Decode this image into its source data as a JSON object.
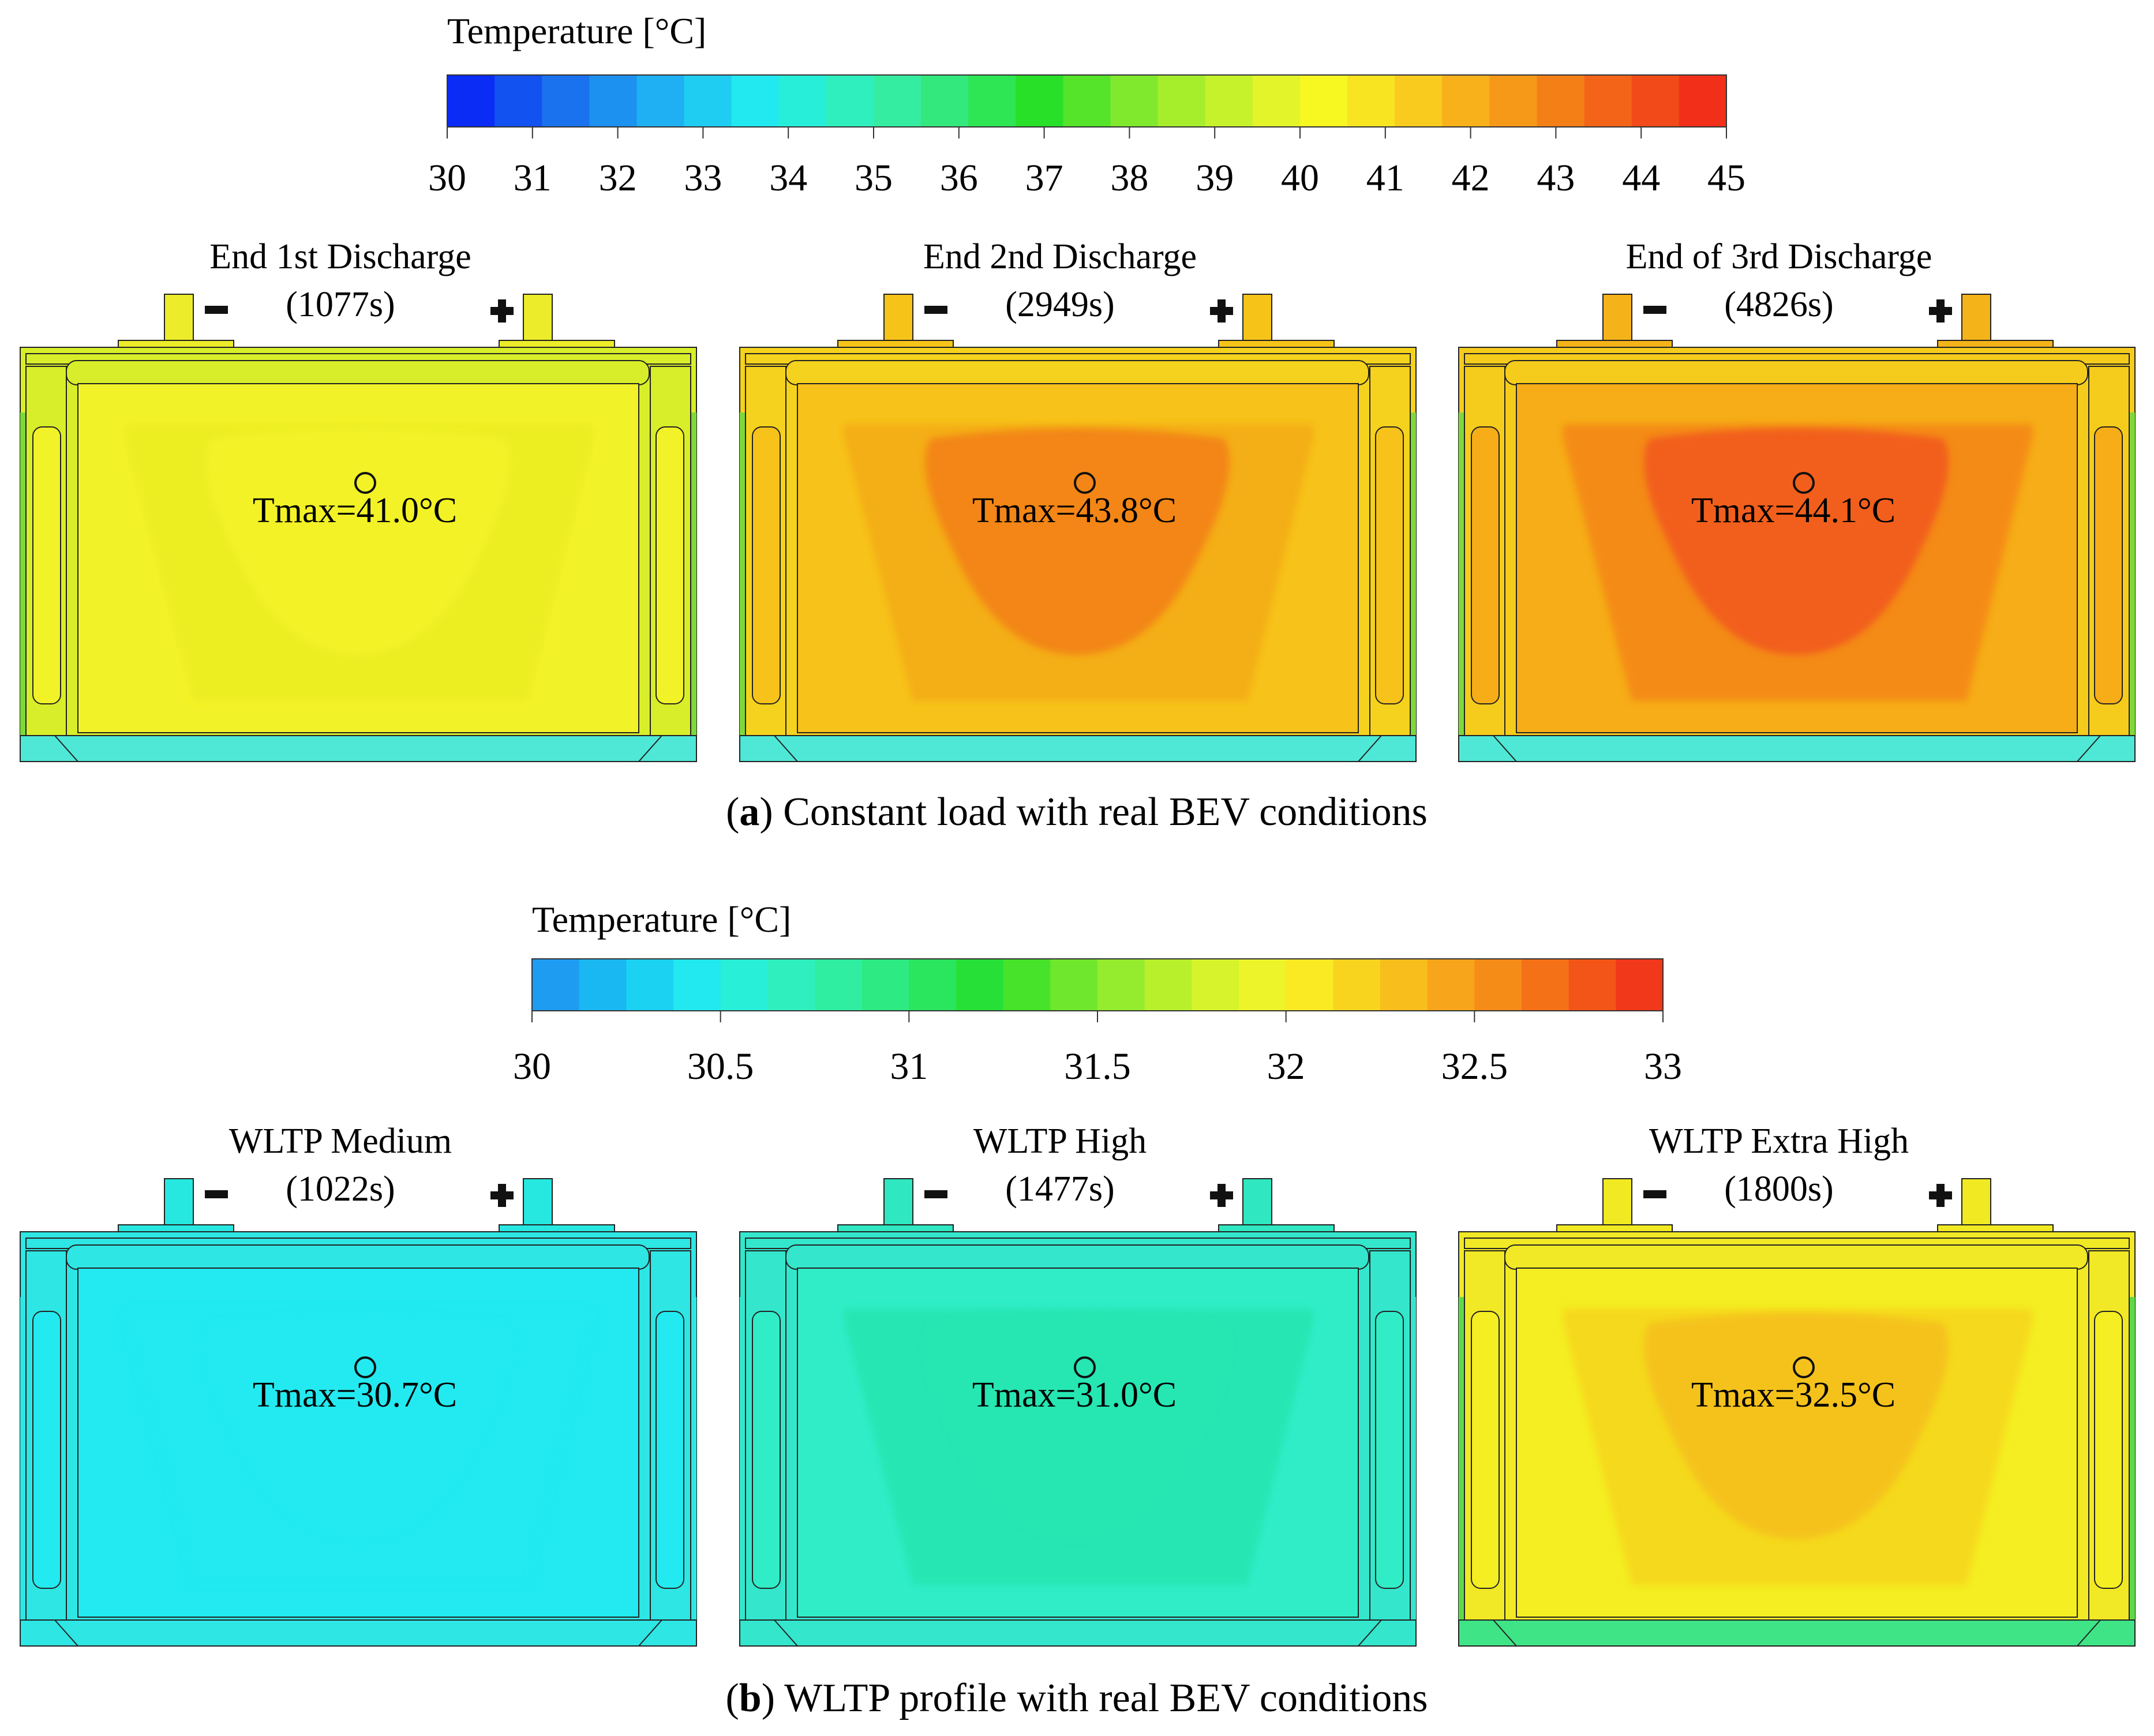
{
  "panel_a": {
    "colorbar": {
      "title": "Temperature [°C]",
      "ticks": [
        "30",
        "31",
        "32",
        "33",
        "34",
        "35",
        "36",
        "37",
        "38",
        "39",
        "40",
        "41",
        "42",
        "43",
        "44",
        "45"
      ],
      "min": 30,
      "max": 45
    },
    "cells": [
      {
        "title": "End 1st Discharge",
        "time": "(1077s)",
        "tmax": "Tmax=41.0°C",
        "tmax_value": 41.0,
        "colors": {
          "body": "#f2f228",
          "lowfan": "#ecee22",
          "hot": "#f2f228",
          "tabs": "#ecec2a",
          "frame": "#d8ee2a",
          "edge": "#7ed83a",
          "base": "#4fe8d6"
        }
      },
      {
        "title": "End 2nd Discharge",
        "time": "(2949s)",
        "tmax": "Tmax=43.8°C",
        "tmax_value": 43.8,
        "colors": {
          "body": "#f7c21a",
          "lowfan": "#f4ad14",
          "hot": "#f38617",
          "tabs": "#f6c419",
          "frame": "#f5d21d",
          "edge": "#7ed83a",
          "base": "#4fe8d6"
        }
      },
      {
        "title": "End of 3rd Discharge",
        "time": "(4826s)",
        "tmax": "Tmax=44.1°C",
        "tmax_value": 44.1,
        "colors": {
          "body": "#f6ad17",
          "lowfan": "#f48a18",
          "hot": "#f25f1a",
          "tabs": "#f5b31a",
          "frame": "#f5cc1c",
          "edge": "#7ed83a",
          "base": "#4fe8d6"
        }
      }
    ],
    "caption_letter": "a",
    "caption_text": " Constant load with real BEV conditions"
  },
  "panel_b": {
    "colorbar": {
      "title": "Temperature [°C]",
      "ticks": [
        "30",
        "30.5",
        "31",
        "31.5",
        "32",
        "32.5",
        "33"
      ],
      "min": 30,
      "max": 33
    },
    "cells": [
      {
        "title": "WLTP Medium",
        "time": "(1022s)",
        "tmax": "Tmax=30.7°C",
        "tmax_value": 30.7,
        "colors": {
          "body": "#22eaf0",
          "lowfan": "#22eaf0",
          "hot": "#22eaf0",
          "tabs": "#27e8e0",
          "frame": "#2ee6e4",
          "edge": "#2ee6e4",
          "base": "#2ee6e4"
        }
      },
      {
        "title": "WLTP High",
        "time": "(1477s)",
        "tmax": "Tmax=31.0°C",
        "tmax_value": 31.0,
        "colors": {
          "body": "#30edc8",
          "lowfan": "#27e6b2",
          "hot": "#27e6b2",
          "tabs": "#2fe7c0",
          "frame": "#34e6cc",
          "edge": "#34e6cc",
          "base": "#34e6cc"
        }
      },
      {
        "title": "WLTP Extra High",
        "time": "(1800s)",
        "tmax": "Tmax=32.5°C",
        "tmax_value": 32.5,
        "colors": {
          "body": "#f4ee22",
          "lowfan": "#f6d81e",
          "hot": "#f5c21b",
          "tabs": "#f1ea22",
          "frame": "#f1e925",
          "edge": "#5fd94a",
          "base": "#3ee486"
        }
      }
    ],
    "caption_letter": "b",
    "caption_text": " WLTP profile with real BEV conditions"
  },
  "colors": {
    "palette_a": [
      "#0a2cf5",
      "#1252f0",
      "#1a72ee",
      "#1c91f0",
      "#1eb0f2",
      "#1fcdf2",
      "#22e8ef",
      "#27eed8",
      "#2fefbe",
      "#35eda0",
      "#33e87c",
      "#2ee654",
      "#28e028",
      "#55e42a",
      "#80e92e",
      "#a6ee2c",
      "#c6f22b",
      "#e3f42a",
      "#f7f722",
      "#f8e420",
      "#f9cb1e",
      "#f8b01b",
      "#f69818",
      "#f57f17",
      "#f36418",
      "#f24a18",
      "#f2301a"
    ],
    "palette_b": [
      "#1e9cf2",
      "#1ab8f2",
      "#1cd2f2",
      "#22e8ef",
      "#28efd7",
      "#2fefbe",
      "#2feea2",
      "#2deb82",
      "#2ae55e",
      "#26e038",
      "#46e32a",
      "#6fe72d",
      "#95ec2e",
      "#b8f02c",
      "#d6f32b",
      "#eef42a",
      "#f9ea24",
      "#f8d41f",
      "#f8be1c",
      "#f7a51a",
      "#f68c18",
      "#f47118",
      "#f35518",
      "#f2381a"
    ],
    "outline": "#222222"
  },
  "icons": {
    "minus": "minus-terminal-icon",
    "plus": "plus-terminal-icon",
    "probe": "probe-circle-icon"
  }
}
